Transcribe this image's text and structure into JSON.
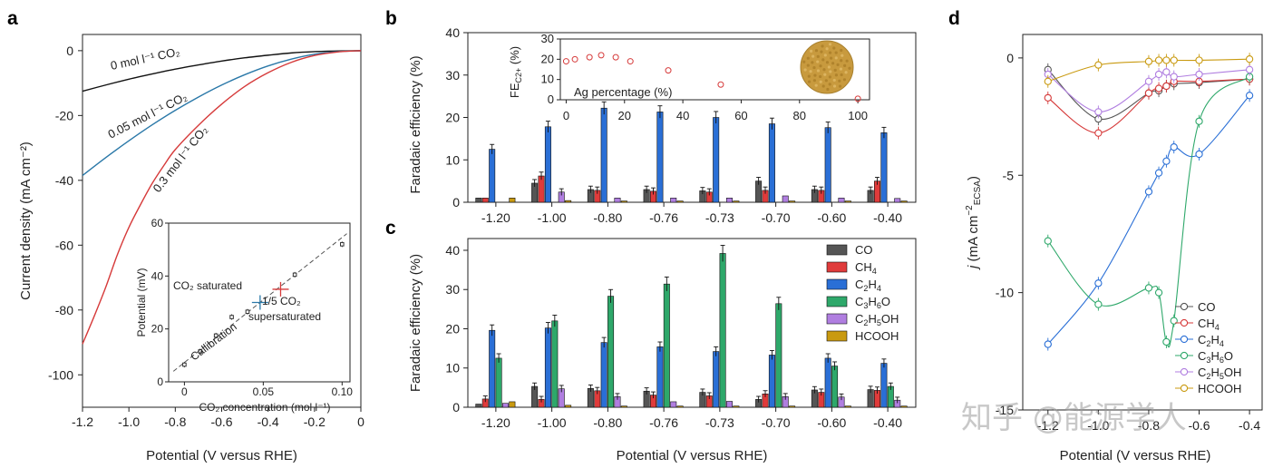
{
  "panels": {
    "a": {
      "letter": "a",
      "chart_data": {
        "type": "line",
        "xlabel": "Potential (V versus RHE)",
        "ylabel": "Current density (mA cm⁻²)",
        "xlim": [
          -1.2,
          0
        ],
        "ylim": [
          -110,
          5
        ],
        "xticks": [
          "-1.2",
          "-1.0",
          "-0.8",
          "-0.6",
          "-0.4",
          "-0.2",
          "0"
        ],
        "yticks": [
          "0",
          "-20",
          "-40",
          "-60",
          "-80",
          "-100"
        ],
        "series": [
          {
            "name": "0 mol l⁻¹ CO₂",
            "color": "#111111",
            "x": [
              -1.2,
              -1.1,
              -1.0,
              -0.9,
              -0.8,
              -0.7,
              -0.6,
              -0.5,
              -0.4,
              -0.3,
              -0.2,
              -0.1,
              0
            ],
            "y": [
              -12.5,
              -10.6,
              -8.8,
              -7.2,
              -5.7,
              -4.4,
              -3.2,
              -2.2,
              -1.4,
              -0.7,
              -0.3,
              -0.1,
              0
            ]
          },
          {
            "name": "0.05 mol l⁻¹ CO₂",
            "color": "#2a78a8",
            "x": [
              -1.2,
              -1.1,
              -1.0,
              -0.9,
              -0.8,
              -0.7,
              -0.6,
              -0.5,
              -0.4,
              -0.3,
              -0.2,
              -0.1,
              0
            ],
            "y": [
              -38.5,
              -33.0,
              -27.8,
              -22.9,
              -18.4,
              -14.3,
              -10.6,
              -7.4,
              -4.7,
              -2.6,
              -1.1,
              -0.3,
              0
            ]
          },
          {
            "name": "0.3 mol l⁻¹ CO₂",
            "color": "#d63a3a",
            "x": [
              -1.2,
              -1.15,
              -1.1,
              -1.05,
              -1.0,
              -0.95,
              -0.9,
              -0.85,
              -0.8,
              -0.7,
              -0.6,
              -0.5,
              -0.4,
              -0.3,
              -0.2,
              -0.1,
              0
            ],
            "y": [
              -90.5,
              -82,
              -73,
              -63,
              -54.5,
              -47.5,
              -41,
              -35.5,
              -30.5,
              -23,
              -16.5,
              -11,
              -6.8,
              -3.6,
              -1.5,
              -0.4,
              0
            ]
          }
        ],
        "inset": {
          "type": "scatter",
          "xlabel": "CO₂ concentration (mol l⁻¹)",
          "ylabel": "Potential (mV)",
          "xlim": [
            -0.01,
            0.105
          ],
          "ylim": [
            0,
            60
          ],
          "xticks": [
            "0",
            "0.05",
            "0.10"
          ],
          "yticks": [
            "0",
            "20",
            "40",
            "60"
          ],
          "calibration_x": [
            0,
            0.01,
            0.02,
            0.03,
            0.04,
            0.07,
            0.1
          ],
          "calibration_y": [
            6.5,
            11.5,
            17.5,
            24.5,
            26.5,
            40.5,
            52
          ],
          "calibration_label": "Callibration",
          "co2_saturated": {
            "label": "CO₂ saturated",
            "x": 0.048,
            "y": 30,
            "color": "#2a78a8"
          },
          "supersaturated": {
            "label_1": "1/5 CO₂",
            "label_2": "supersaturated",
            "x": 0.061,
            "y": 35,
            "color": "#d63a3a"
          }
        }
      }
    },
    "b": {
      "letter": "b",
      "chart_data": {
        "type": "bar",
        "ylabel": "Faradaic efficiency (%)",
        "ylim": [
          0,
          40
        ],
        "yticks": [
          "0",
          "10",
          "20",
          "30",
          "40"
        ],
        "categories": [
          "-1.20",
          "-1.00",
          "-0.80",
          "-0.76",
          "-0.73",
          "-0.70",
          "-0.60",
          "-0.40"
        ],
        "series": [
          {
            "name": "CO",
            "values": [
              1.0,
              4.5,
              3.0,
              3.0,
              2.7,
              5.0,
              3.0,
              2.8
            ]
          },
          {
            "name": "CH₄",
            "values": [
              1.0,
              6.2,
              2.8,
              2.6,
              2.4,
              2.8,
              2.8,
              5.0
            ]
          },
          {
            "name": "C₂H₄",
            "values": [
              12.5,
              17.8,
              22.2,
              21.3,
              20.0,
              18.5,
              17.6,
              16.4
            ]
          },
          {
            "name": "C₃H₆O",
            "values": [
              0,
              0,
              0,
              0,
              0,
              0,
              0,
              0
            ]
          },
          {
            "name": "C₂H₅OH",
            "values": [
              0,
              2.4,
              1.0,
              1.0,
              1.0,
              1.5,
              1.0,
              0.9
            ]
          },
          {
            "name": "HCOOH",
            "values": [
              1.0,
              0.4,
              0.3,
              0.3,
              0.3,
              0.3,
              0.3,
              0.3
            ]
          }
        ],
        "inset": {
          "type": "scatter",
          "xlabel": "Ag percentage (%)",
          "ylabel": "FE C2+ (%)",
          "ylabel_main": "FE",
          "ylabel_sub": "C2+",
          "ylabel_unit": " (%)",
          "xlim": [
            -2,
            104
          ],
          "ylim": [
            0,
            30
          ],
          "xticks": [
            "0",
            "20",
            "40",
            "60",
            "80",
            "100"
          ],
          "yticks": [
            "0",
            "10",
            "20",
            "30"
          ],
          "x": [
            0,
            3,
            8,
            12,
            17,
            22,
            35,
            53,
            100
          ],
          "y": [
            19,
            20,
            21,
            22,
            21,
            19,
            14.5,
            7.5,
            0.5
          ],
          "color": "#d63a3a"
        }
      }
    },
    "c": {
      "letter": "c",
      "chart_data": {
        "type": "bar",
        "xlabel": "Potential (V versus RHE)",
        "ylabel": "Faradaic efficiency (%)",
        "ylim": [
          0,
          43
        ],
        "yticks": [
          "0",
          "10",
          "20",
          "30",
          "40"
        ],
        "categories": [
          "-1.20",
          "-1.00",
          "-0.80",
          "-0.76",
          "-0.73",
          "-0.70",
          "-0.60",
          "-0.40"
        ],
        "series": [
          {
            "name": "CO",
            "values": [
              0.8,
              5.3,
              4.8,
              4.1,
              3.8,
              2.0,
              4.4,
              4.5
            ]
          },
          {
            "name": "CH₄",
            "values": [
              2.1,
              2.0,
              4.2,
              3.1,
              2.9,
              3.4,
              3.8,
              4.3
            ]
          },
          {
            "name": "C₂H₄",
            "values": [
              19.6,
              20.2,
              16.5,
              15.4,
              14.2,
              13.3,
              12.5,
              11.2
            ]
          },
          {
            "name": "C₃H₆O",
            "values": [
              12.5,
              22.0,
              28.3,
              31.4,
              39.2,
              26.4,
              10.5,
              5.3
            ]
          },
          {
            "name": "C₂H₅OH",
            "values": [
              1.0,
              4.7,
              2.7,
              1.4,
              1.5,
              2.7,
              2.6,
              1.8
            ]
          },
          {
            "name": "HCOOH",
            "values": [
              1.4,
              0.5,
              0.3,
              0.3,
              0.3,
              0.3,
              0.3,
              0.3
            ]
          }
        ],
        "legend": [
          {
            "label_main": "CO",
            "color": "#555555"
          },
          {
            "label_main": "CH",
            "sub": "4",
            "color": "#e03b3b"
          },
          {
            "label_main": "C",
            "sub": "2",
            "label_mid": "H",
            "sub2": "4",
            "color": "#2a6fd6"
          },
          {
            "label_main": "C",
            "sub": "3",
            "label_mid": "H",
            "sub2": "6",
            "label_end": "O",
            "color": "#2ea86a"
          },
          {
            "label_main": "C",
            "sub": "2",
            "label_mid": "H",
            "sub2": "5",
            "label_end": "OH",
            "color": "#b07ee0"
          },
          {
            "label_main": "HCOOH",
            "color": "#c99a10"
          }
        ]
      }
    },
    "d": {
      "letter": "d",
      "chart_data": {
        "type": "line",
        "xlabel": "Potential (V versus RHE)",
        "ylabel": "j (mA cm⁻² ECSA)",
        "xlim": [
          -1.3,
          -0.35
        ],
        "ylim": [
          -15,
          1
        ],
        "xticks": [
          "-1.2",
          "-1.0",
          "-0.8",
          "-0.6",
          "-0.4"
        ],
        "yticks": [
          "0",
          "-5",
          "-10",
          "-15"
        ],
        "series": [
          {
            "name": "CO",
            "color": "#555555",
            "x": [
              -1.2,
              -1.0,
              -0.8,
              -0.76,
              -0.73,
              -0.7,
              -0.6,
              -0.4
            ],
            "y": [
              -0.5,
              -2.6,
              -1.5,
              -1.4,
              -1.2,
              -1.1,
              -1.05,
              -0.9
            ]
          },
          {
            "name": "CH₄",
            "color": "#d63a3a",
            "x": [
              -1.2,
              -1.0,
              -0.8,
              -0.76,
              -0.73,
              -0.7,
              -0.6,
              -0.4
            ],
            "y": [
              -1.7,
              -3.2,
              -1.5,
              -1.3,
              -1.2,
              -1.0,
              -1.0,
              -0.9
            ]
          },
          {
            "name": "C₂H₄",
            "color": "#2a6fd6",
            "x": [
              -1.2,
              -1.0,
              -0.8,
              -0.76,
              -0.73,
              -0.7,
              -0.6,
              -0.4
            ],
            "y": [
              -12.2,
              -9.6,
              -5.7,
              -4.9,
              -4.4,
              -3.8,
              -4.1,
              -1.6
            ]
          },
          {
            "name": "C₃H₆O",
            "color": "#2ea86a",
            "x": [
              -1.2,
              -1.0,
              -0.8,
              -0.76,
              -0.73,
              -0.7,
              -0.6,
              -0.4
            ],
            "y": [
              -7.8,
              -10.5,
              -9.8,
              -10.0,
              -12.1,
              -11.2,
              -2.7,
              -0.8
            ]
          },
          {
            "name": "C₂H₅OH",
            "color": "#b07ee0",
            "x": [
              -1.2,
              -1.0,
              -0.8,
              -0.76,
              -0.73,
              -0.7,
              -0.6,
              -0.4
            ],
            "y": [
              -0.7,
              -2.3,
              -1.0,
              -0.7,
              -0.6,
              -0.8,
              -0.7,
              -0.5
            ]
          },
          {
            "name": "HCOOH",
            "color": "#c99a10",
            "x": [
              -1.2,
              -1.0,
              -0.8,
              -0.76,
              -0.73,
              -0.7,
              -0.6,
              -0.4
            ],
            "y": [
              -1.0,
              -0.3,
              -0.15,
              -0.1,
              -0.1,
              -0.1,
              -0.1,
              -0.05
            ]
          }
        ],
        "legend": [
          {
            "label_main": "CO",
            "color": "#555555"
          },
          {
            "label_main": "CH",
            "sub": "4",
            "color": "#d63a3a"
          },
          {
            "label_main": "C",
            "sub": "2",
            "label_mid": "H",
            "sub2": "4",
            "color": "#2a6fd6"
          },
          {
            "label_main": "C",
            "sub": "3",
            "label_mid": "H",
            "sub2": "6",
            "label_end": "O",
            "color": "#2ea86a"
          },
          {
            "label_main": "C",
            "sub": "2",
            "label_mid": "H",
            "sub2": "5",
            "label_end": "OH",
            "color": "#b07ee0"
          },
          {
            "label_main": "HCOOH",
            "color": "#c99a10"
          }
        ]
      }
    }
  },
  "colors": {
    "CO": "#555555",
    "CH4": "#e03b3b",
    "C2H4": "#2a6fd6",
    "C3H6O": "#2ea86a",
    "C2H5OH": "#b07ee0",
    "HCOOH": "#c99a10"
  },
  "watermark": "知乎 @能源学人"
}
